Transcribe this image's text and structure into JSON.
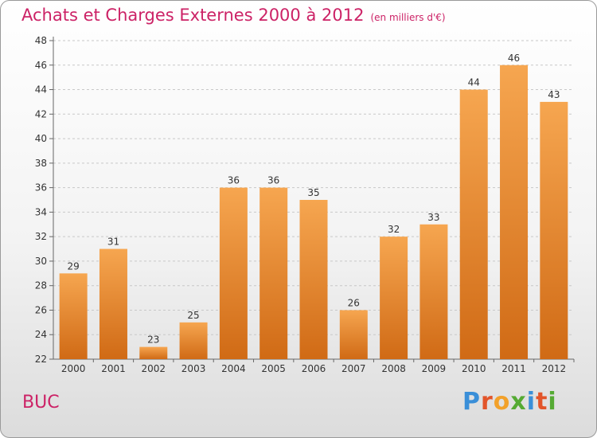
{
  "title": "Achats et Charges Externes 2000 à 2012",
  "subtitle": "(en milliers d'€)",
  "commune": "BUC",
  "logo": {
    "letters": [
      "P",
      "r",
      "o",
      "x",
      "i",
      "t",
      "i"
    ],
    "colors": [
      "#3a8fd8",
      "#e2552a",
      "#f2a12a",
      "#55aa33",
      "#3a8fd8",
      "#e2552a",
      "#55aa33"
    ]
  },
  "colors": {
    "bar": "#ed8a30",
    "title": "#cc2266"
  },
  "chart_data": {
    "type": "bar",
    "categories": [
      "2000",
      "2001",
      "2002",
      "2003",
      "2004",
      "2005",
      "2006",
      "2007",
      "2008",
      "2009",
      "2010",
      "2011",
      "2012"
    ],
    "values": [
      29,
      31,
      23,
      25,
      36,
      36,
      35,
      26,
      32,
      33,
      44,
      46,
      43
    ],
    "ylim": [
      22,
      48
    ],
    "yticks": [
      22,
      24,
      26,
      28,
      30,
      32,
      34,
      36,
      38,
      40,
      42,
      44,
      46,
      48
    ],
    "grid": "horizontal dashed",
    "data_labels": true
  }
}
